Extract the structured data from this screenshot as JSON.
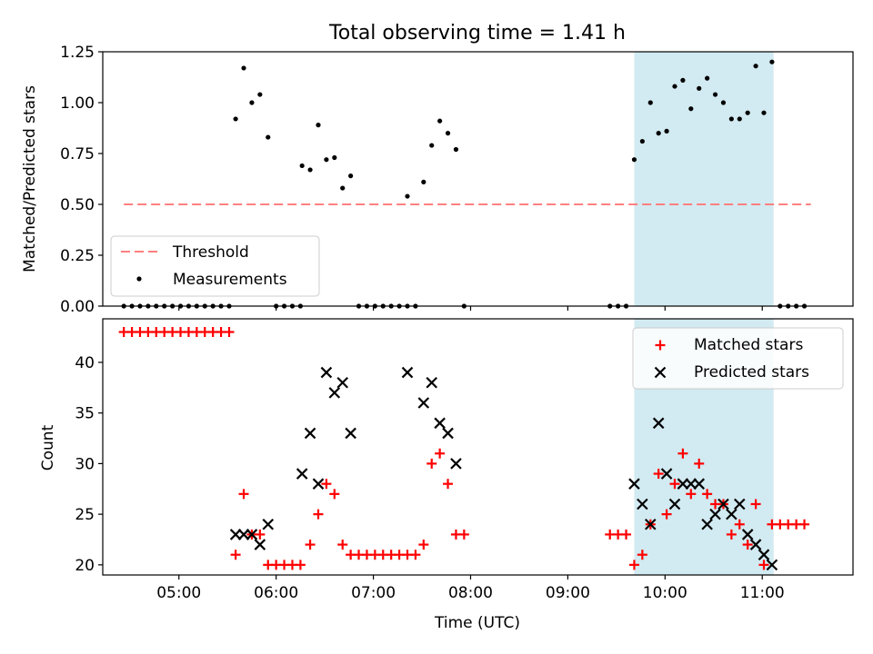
{
  "chart_data": {
    "title": "Total observing time = 1.41 h",
    "colors": {
      "threshold": "#ff7f7f",
      "measurements": "#000000",
      "matched": "#ff0000",
      "predicted": "#000000",
      "highlight": "#add8e6"
    },
    "xlabel": "Time (UTC)",
    "x_ticks": [
      "05:00",
      "06:00",
      "07:00",
      "08:00",
      "09:00",
      "10:00",
      "11:00"
    ],
    "x_range": [
      "04:13",
      "11:56"
    ],
    "highlight_span": [
      "09:41",
      "11:07"
    ],
    "panels": [
      {
        "id": "ratio",
        "type": "scatter",
        "ylabel": "Matched/Predicted stars",
        "ylim": [
          0,
          1.25
        ],
        "y_ticks": [
          "0.00",
          "0.25",
          "0.50",
          "0.75",
          "1.00",
          "1.25"
        ],
        "legend_position": "lower-left",
        "threshold": {
          "name": "Threshold",
          "value": 0.5,
          "x_range": [
            "04:26",
            "11:30"
          ]
        },
        "series": [
          {
            "name": "Measurements",
            "marker": "dot",
            "points": [
              [
                "04:26",
                0.0
              ],
              [
                "04:31",
                0.0
              ],
              [
                "04:36",
                0.0
              ],
              [
                "04:41",
                0.0
              ],
              [
                "04:46",
                0.0
              ],
              [
                "04:51",
                0.0
              ],
              [
                "04:56",
                0.0
              ],
              [
                "05:01",
                0.0
              ],
              [
                "05:06",
                0.0
              ],
              [
                "05:11",
                0.0
              ],
              [
                "05:16",
                0.0
              ],
              [
                "05:21",
                0.0
              ],
              [
                "05:26",
                0.0
              ],
              [
                "05:31",
                0.0
              ],
              [
                "05:35",
                0.92
              ],
              [
                "05:40",
                1.17
              ],
              [
                "05:45",
                1.0
              ],
              [
                "05:50",
                1.04
              ],
              [
                "05:55",
                0.83
              ],
              [
                "06:00",
                0.0
              ],
              [
                "06:05",
                0.0
              ],
              [
                "06:10",
                0.0
              ],
              [
                "06:15",
                0.0
              ],
              [
                "06:16",
                0.69
              ],
              [
                "06:21",
                0.67
              ],
              [
                "06:26",
                0.89
              ],
              [
                "06:31",
                0.72
              ],
              [
                "06:36",
                0.73
              ],
              [
                "06:41",
                0.58
              ],
              [
                "06:46",
                0.64
              ],
              [
                "06:51",
                0.0
              ],
              [
                "06:56",
                0.0
              ],
              [
                "07:01",
                0.0
              ],
              [
                "07:06",
                0.0
              ],
              [
                "07:11",
                0.0
              ],
              [
                "07:16",
                0.0
              ],
              [
                "07:21",
                0.0
              ],
              [
                "07:21",
                0.54
              ],
              [
                "07:26",
                0.0
              ],
              [
                "07:31",
                0.61
              ],
              [
                "07:36",
                0.79
              ],
              [
                "07:41",
                0.91
              ],
              [
                "07:46",
                0.85
              ],
              [
                "07:51",
                0.77
              ],
              [
                "07:56",
                0.0
              ],
              [
                "09:26",
                0.0
              ],
              [
                "09:31",
                0.0
              ],
              [
                "09:36",
                0.0
              ],
              [
                "09:41",
                0.72
              ],
              [
                "09:46",
                0.81
              ],
              [
                "09:51",
                1.0
              ],
              [
                "09:56",
                0.85
              ],
              [
                "10:01",
                0.86
              ],
              [
                "10:06",
                1.08
              ],
              [
                "10:11",
                1.11
              ],
              [
                "10:16",
                0.97
              ],
              [
                "10:21",
                1.07
              ],
              [
                "10:26",
                1.12
              ],
              [
                "10:31",
                1.04
              ],
              [
                "10:36",
                1.0
              ],
              [
                "10:41",
                0.92
              ],
              [
                "10:46",
                0.92
              ],
              [
                "10:51",
                0.95
              ],
              [
                "10:56",
                1.18
              ],
              [
                "11:01",
                0.95
              ],
              [
                "11:06",
                1.2
              ],
              [
                "11:11",
                0.0
              ],
              [
                "11:16",
                0.0
              ],
              [
                "11:21",
                0.0
              ],
              [
                "11:26",
                0.0
              ]
            ]
          }
        ]
      },
      {
        "id": "counts",
        "type": "scatter",
        "ylabel": "Count",
        "ylim": [
          19.0,
          44.3
        ],
        "y_ticks": [
          "20",
          "25",
          "30",
          "35",
          "40"
        ],
        "legend_position": "upper-right",
        "series": [
          {
            "name": "Matched stars",
            "marker": "plus",
            "points": [
              [
                "04:26",
                43
              ],
              [
                "04:31",
                43
              ],
              [
                "04:36",
                43
              ],
              [
                "04:41",
                43
              ],
              [
                "04:46",
                43
              ],
              [
                "04:51",
                43
              ],
              [
                "04:56",
                43
              ],
              [
                "05:01",
                43
              ],
              [
                "05:06",
                43
              ],
              [
                "05:11",
                43
              ],
              [
                "05:16",
                43
              ],
              [
                "05:21",
                43
              ],
              [
                "05:26",
                43
              ],
              [
                "05:31",
                43
              ],
              [
                "05:35",
                21
              ],
              [
                "05:40",
                27
              ],
              [
                "05:45",
                23
              ],
              [
                "05:50",
                23
              ],
              [
                "05:55",
                20
              ],
              [
                "06:00",
                20
              ],
              [
                "06:05",
                20
              ],
              [
                "06:10",
                20
              ],
              [
                "06:15",
                20
              ],
              [
                "06:21",
                22
              ],
              [
                "06:26",
                25
              ],
              [
                "06:31",
                28
              ],
              [
                "06:36",
                27
              ],
              [
                "06:41",
                22
              ],
              [
                "06:46",
                21
              ],
              [
                "06:51",
                21
              ],
              [
                "06:56",
                21
              ],
              [
                "07:01",
                21
              ],
              [
                "07:06",
                21
              ],
              [
                "07:11",
                21
              ],
              [
                "07:16",
                21
              ],
              [
                "07:21",
                21
              ],
              [
                "07:26",
                21
              ],
              [
                "07:31",
                22
              ],
              [
                "07:36",
                30
              ],
              [
                "07:41",
                31
              ],
              [
                "07:46",
                28
              ],
              [
                "07:51",
                23
              ],
              [
                "07:56",
                23
              ],
              [
                "09:26",
                23
              ],
              [
                "09:31",
                23
              ],
              [
                "09:36",
                23
              ],
              [
                "09:41",
                20
              ],
              [
                "09:46",
                21
              ],
              [
                "09:51",
                24
              ],
              [
                "09:56",
                29
              ],
              [
                "10:01",
                25
              ],
              [
                "10:06",
                28
              ],
              [
                "10:11",
                31
              ],
              [
                "10:16",
                27
              ],
              [
                "10:21",
                30
              ],
              [
                "10:26",
                27
              ],
              [
                "10:31",
                26
              ],
              [
                "10:36",
                26
              ],
              [
                "10:41",
                23
              ],
              [
                "10:46",
                24
              ],
              [
                "10:51",
                22
              ],
              [
                "10:56",
                26
              ],
              [
                "11:01",
                20
              ],
              [
                "11:06",
                24
              ],
              [
                "11:11",
                24
              ],
              [
                "11:16",
                24
              ],
              [
                "11:21",
                24
              ],
              [
                "11:26",
                24
              ]
            ]
          },
          {
            "name": "Predicted stars",
            "marker": "x",
            "points": [
              [
                "05:35",
                23
              ],
              [
                "05:40",
                23
              ],
              [
                "05:45",
                23
              ],
              [
                "05:50",
                22
              ],
              [
                "05:55",
                24
              ],
              [
                "06:16",
                29
              ],
              [
                "06:21",
                33
              ],
              [
                "06:26",
                28
              ],
              [
                "06:31",
                39
              ],
              [
                "06:36",
                37
              ],
              [
                "06:41",
                38
              ],
              [
                "06:46",
                33
              ],
              [
                "07:21",
                39
              ],
              [
                "07:31",
                36
              ],
              [
                "07:36",
                38
              ],
              [
                "07:41",
                34
              ],
              [
                "07:46",
                33
              ],
              [
                "07:51",
                30
              ],
              [
                "09:41",
                28
              ],
              [
                "09:46",
                26
              ],
              [
                "09:51",
                24
              ],
              [
                "09:56",
                34
              ],
              [
                "10:01",
                29
              ],
              [
                "10:06",
                26
              ],
              [
                "10:11",
                28
              ],
              [
                "10:16",
                28
              ],
              [
                "10:21",
                28
              ],
              [
                "10:26",
                24
              ],
              [
                "10:31",
                25
              ],
              [
                "10:36",
                26
              ],
              [
                "10:41",
                25
              ],
              [
                "10:46",
                26
              ],
              [
                "10:51",
                23
              ],
              [
                "10:56",
                22
              ],
              [
                "11:01",
                21
              ],
              [
                "11:06",
                20
              ]
            ]
          }
        ]
      }
    ]
  }
}
